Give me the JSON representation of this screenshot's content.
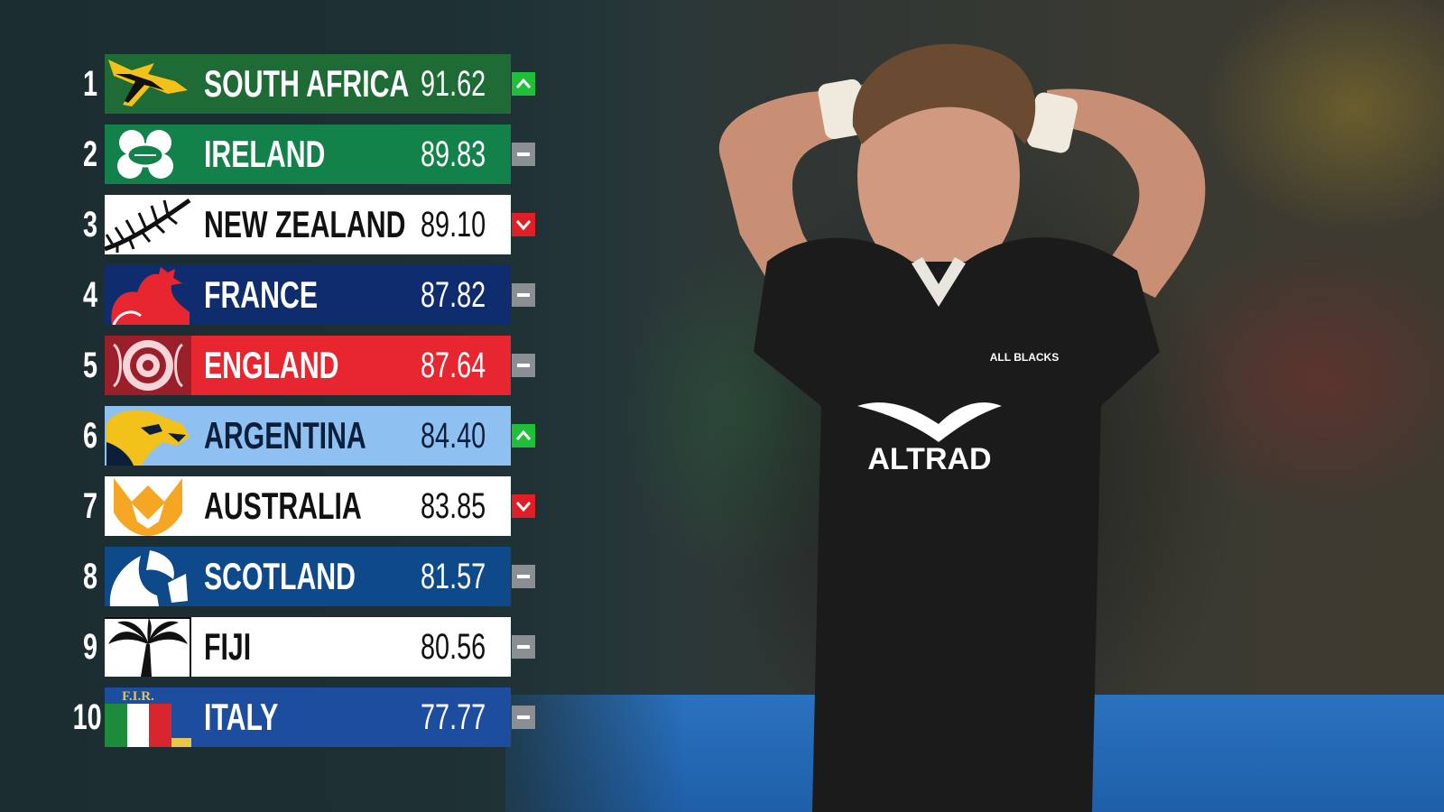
{
  "rankings": [
    {
      "rank": "1",
      "team": "SOUTH AFRICA",
      "points": "91.62",
      "trend": "up",
      "bar": "#1e6b35",
      "text": "#ffffff",
      "logo": "springbok-icon"
    },
    {
      "rank": "2",
      "team": "IRELAND",
      "points": "89.83",
      "trend": "same",
      "bar": "#12824a",
      "text": "#ffffff",
      "logo": "shamrock-icon"
    },
    {
      "rank": "3",
      "team": "NEW ZEALAND",
      "points": "89.10",
      "trend": "down",
      "bar": "#ffffff",
      "text": "#111111",
      "logo": "silver-fern-icon"
    },
    {
      "rank": "4",
      "team": "FRANCE",
      "points": "87.82",
      "trend": "same",
      "bar": "#0f2c6e",
      "text": "#ffffff",
      "logo": "rooster-icon"
    },
    {
      "rank": "5",
      "team": "ENGLAND",
      "points": "87.64",
      "trend": "same",
      "bar": "#e8262f",
      "text": "#ffffff",
      "logo": "rose-icon"
    },
    {
      "rank": "6",
      "team": "ARGENTINA",
      "points": "84.40",
      "trend": "up",
      "bar": "#8fc0f2",
      "text": "#0c1f3a",
      "logo": "puma-icon"
    },
    {
      "rank": "7",
      "team": "AUSTRALIA",
      "points": "83.85",
      "trend": "down",
      "bar": "#ffffff",
      "text": "#111111",
      "logo": "wallaby-icon"
    },
    {
      "rank": "8",
      "team": "SCOTLAND",
      "points": "81.57",
      "trend": "same",
      "bar": "#0e4a8a",
      "text": "#ffffff",
      "logo": "thistle-icon"
    },
    {
      "rank": "9",
      "team": "FIJI",
      "points": "80.56",
      "trend": "same",
      "bar": "#ffffff",
      "text": "#111111",
      "logo": "palm-icon"
    },
    {
      "rank": "10",
      "team": "ITALY",
      "points": "77.77",
      "trend": "same",
      "bar": "#1d4d9e",
      "text": "#ffffff",
      "logo": "fir-shield-icon"
    }
  ],
  "logo_texts": {
    "italy": "F.I.R."
  },
  "jersey": {
    "sponsor": "ALTRAD",
    "crest": "ALL BLACKS"
  },
  "colors": {
    "up": "#1fbf3a",
    "down": "#e01e25",
    "same": "#8a8f94"
  }
}
